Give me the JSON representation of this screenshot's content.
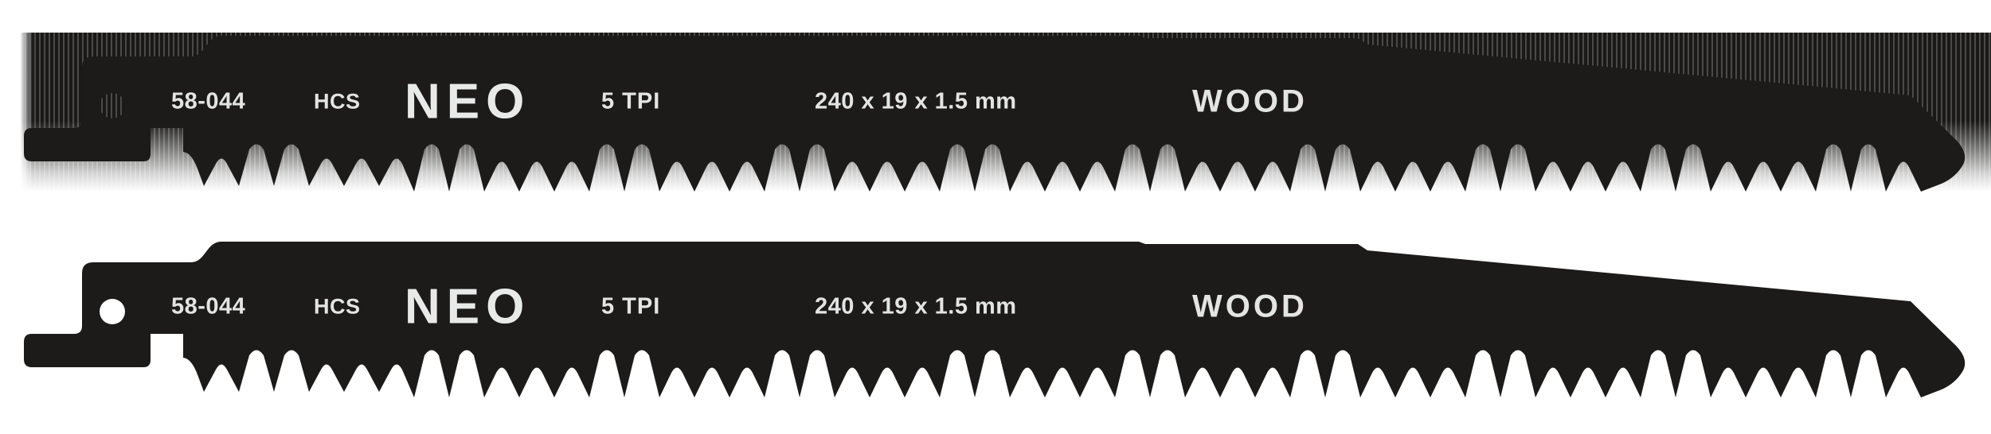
{
  "product_image": {
    "background_color": "#ffffff",
    "blade_color": "#1c1b1a",
    "print_color": "#e3e5e4",
    "streak_band_colors": [
      "#4a4a49",
      "#1a1918"
    ]
  },
  "blades": [
    {
      "code": "58-044",
      "material": "HCS",
      "brand": "NEO",
      "tpi": "5 TPI",
      "dimensions": "240 x 19 x 1.5 mm",
      "application": "WOOD"
    },
    {
      "code": "58-044",
      "material": "HCS",
      "brand": "NEO",
      "tpi": "5 TPI",
      "dimensions": "240 x 19 x 1.5 mm",
      "application": "WOOD"
    }
  ]
}
